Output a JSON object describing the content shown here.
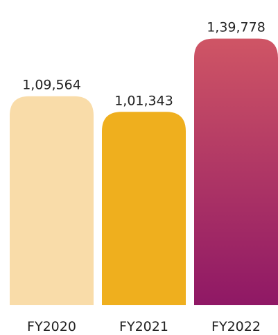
{
  "chart_data": {
    "type": "bar",
    "categories": [
      "FY2020",
      "FY2021",
      "FY2022"
    ],
    "values": [
      109564,
      101343,
      139778
    ],
    "value_labels": [
      "1,09,564",
      "1,01,343",
      "1,39,778"
    ],
    "title": "",
    "xlabel": "",
    "ylabel": "",
    "ylim": [
      0,
      160000
    ],
    "grid": false,
    "legend": "none",
    "bar_styles": [
      {
        "fill": "#f9dca9"
      },
      {
        "fill": "#efaf1e"
      },
      {
        "gradient": [
          "#cf5565",
          "#8f1865"
        ]
      }
    ]
  }
}
